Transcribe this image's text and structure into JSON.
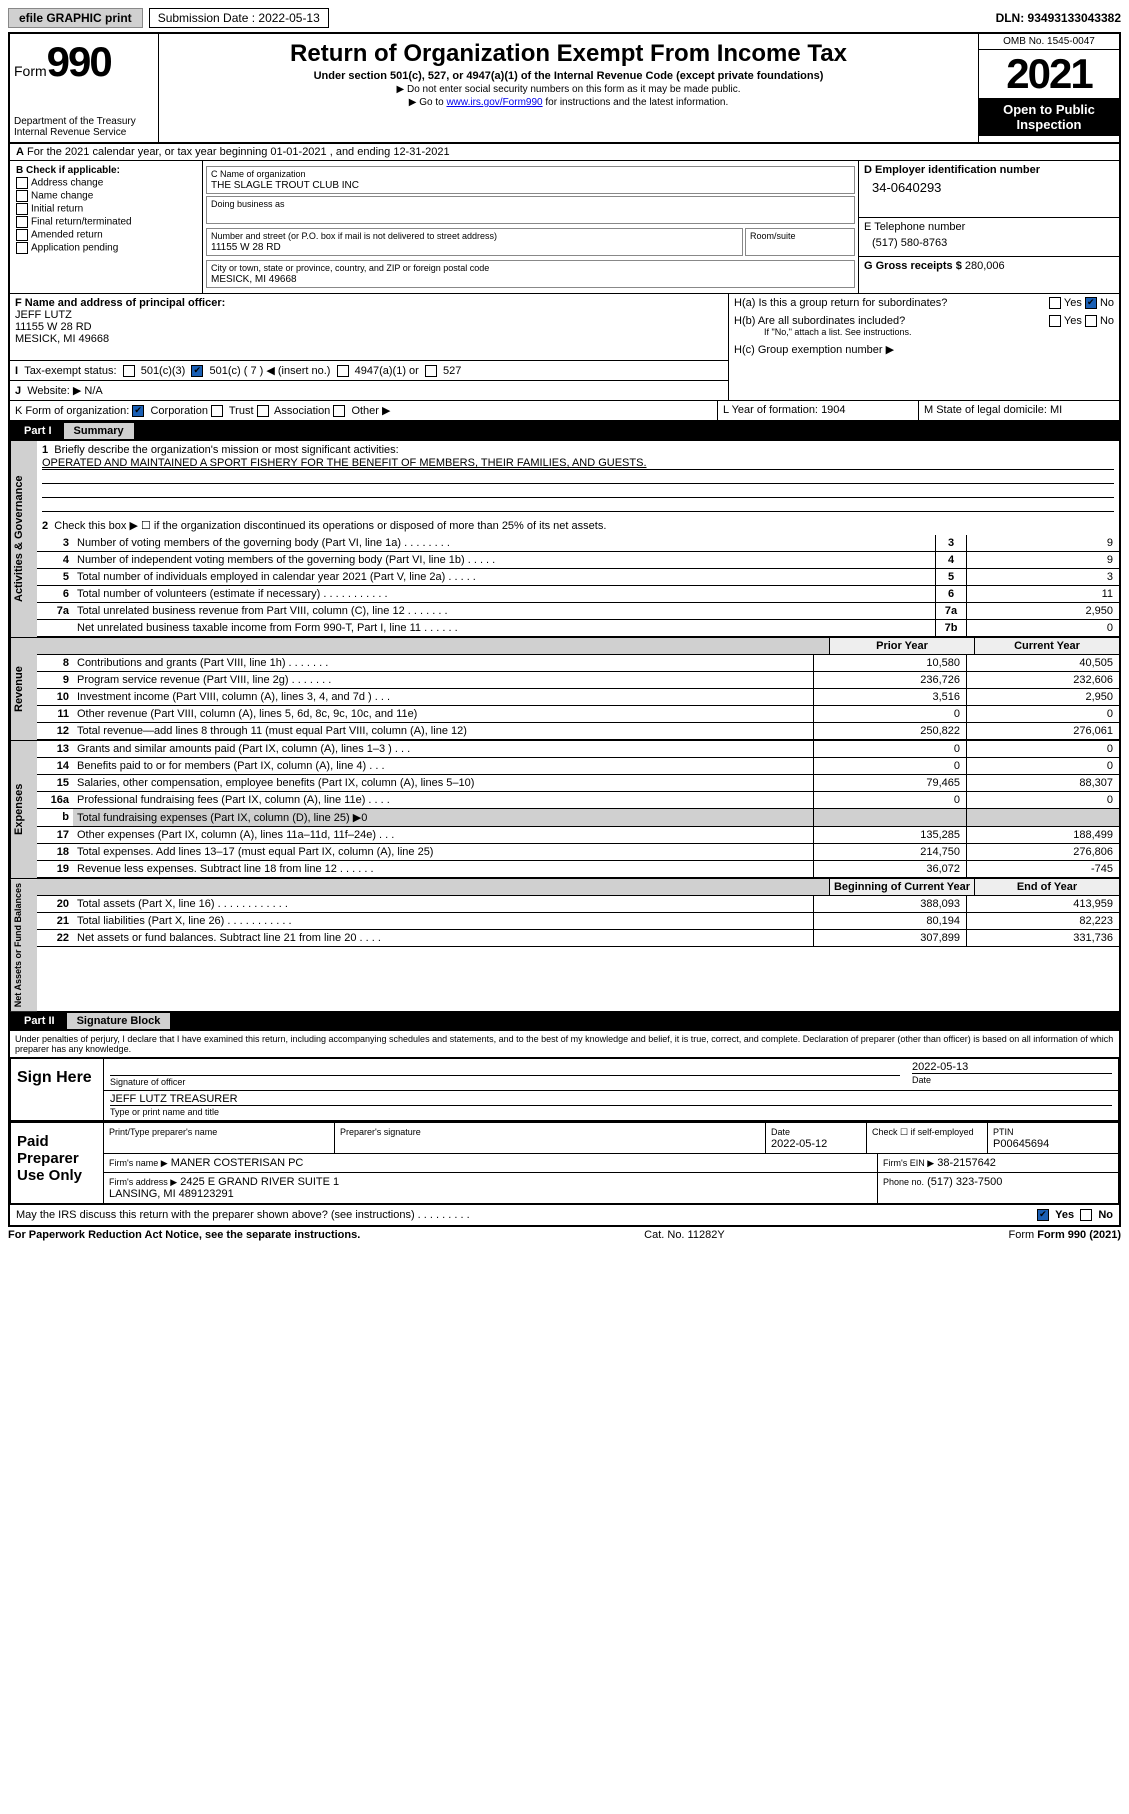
{
  "topbar": {
    "efile": "efile GRAPHIC print",
    "submission_label": "Submission Date : 2022-05-13",
    "dln": "DLN: 93493133043382"
  },
  "header": {
    "form_label": "Form",
    "form_number": "990",
    "dept": "Department of the Treasury\nInternal Revenue Service",
    "title": "Return of Organization Exempt From Income Tax",
    "subtitle": "Under section 501(c), 527, or 4947(a)(1) of the Internal Revenue Code (except private foundations)",
    "note1": "▶ Do not enter social security numbers on this form as it may be made public.",
    "note2_pre": "▶ Go to ",
    "note2_link": "www.irs.gov/Form990",
    "note2_post": " for instructions and the latest information.",
    "omb": "OMB No. 1545-0047",
    "year": "2021",
    "open": "Open to Public Inspection"
  },
  "sectionA": "For the 2021 calendar year, or tax year beginning 01-01-2021   , and ending 12-31-2021",
  "B": {
    "label": "B Check if applicable:",
    "items": [
      "Address change",
      "Name change",
      "Initial return",
      "Final return/terminated",
      "Amended return",
      "Application pending"
    ]
  },
  "C": {
    "name_label": "C Name of organization",
    "name": "THE SLAGLE TROUT CLUB INC",
    "dba_label": "Doing business as",
    "dba": "",
    "street_label": "Number and street (or P.O. box if mail is not delivered to street address)",
    "room_label": "Room/suite",
    "street": "11155 W 28 RD",
    "city_label": "City or town, state or province, country, and ZIP or foreign postal code",
    "city": "MESICK, MI  49668"
  },
  "D": {
    "label": "D Employer identification number",
    "value": "34-0640293"
  },
  "E": {
    "label": "E Telephone number",
    "value": "(517) 580-8763"
  },
  "G": {
    "label": "G Gross receipts $",
    "value": "280,006"
  },
  "F": {
    "label": "F Name and address of principal officer:",
    "name": "JEFF LUTZ",
    "street": "11155 W 28 RD",
    "city": "MESICK, MI  49668"
  },
  "H": {
    "a": "H(a)  Is this a group return for subordinates?",
    "a_yes": "Yes",
    "a_no": "No",
    "b": "H(b)  Are all subordinates included?",
    "b_note": "If \"No,\" attach a list. See instructions.",
    "c": "H(c)  Group exemption number ▶"
  },
  "I": {
    "label": "Tax-exempt status:",
    "c3": "501(c)(3)",
    "c": "501(c) ( 7 ) ◀ (insert no.)",
    "a1": "4947(a)(1) or",
    "527": "527"
  },
  "J": {
    "label": "Website: ▶",
    "value": "N/A"
  },
  "K": {
    "label": "K Form of organization:",
    "opts": [
      "Corporation",
      "Trust",
      "Association",
      "Other ▶"
    ]
  },
  "L": {
    "label": "L Year of formation:",
    "value": "1904"
  },
  "M": {
    "label": "M State of legal domicile:",
    "value": "MI"
  },
  "part1": {
    "title": "Part I",
    "sub": "Summary",
    "tabs": {
      "ag": "Activities & Governance",
      "rev": "Revenue",
      "exp": "Expenses",
      "na": "Net Assets or Fund Balances"
    },
    "line1": "Briefly describe the organization's mission or most significant activities:",
    "mission": "OPERATED AND MAINTAINED A SPORT FISHERY FOR THE BENEFIT OF MEMBERS, THEIR FAMILIES, AND GUESTS.",
    "line2": "Check this box ▶ ☐  if the organization discontinued its operations or disposed of more than 25% of its net assets.",
    "rows": [
      {
        "n": "3",
        "d": "Number of voting members of the governing body (Part VI, line 1a)   .   .   .   .   .   .   .   .",
        "b": "3",
        "v": "9"
      },
      {
        "n": "4",
        "d": "Number of independent voting members of the governing body (Part VI, line 1b)   .   .   .   .   .",
        "b": "4",
        "v": "9"
      },
      {
        "n": "5",
        "d": "Total number of individuals employed in calendar year 2021 (Part V, line 2a)   .   .   .   .   .",
        "b": "5",
        "v": "3"
      },
      {
        "n": "6",
        "d": "Total number of volunteers (estimate if necessary)   .   .   .   .   .   .   .   .   .   .   .",
        "b": "6",
        "v": "11"
      },
      {
        "n": "7a",
        "d": "Total unrelated business revenue from Part VIII, column (C), line 12   .   .   .   .   .   .   .",
        "b": "7a",
        "v": "2,950"
      },
      {
        "n": "",
        "d": "Net unrelated business taxable income from Form 990-T, Part I, line 11   .   .   .   .   .   .",
        "b": "7b",
        "v": "0"
      }
    ],
    "cols": {
      "prior": "Prior Year",
      "current": "Current Year",
      "begin": "Beginning of Current Year",
      "end": "End of Year"
    },
    "rev": [
      {
        "n": "8",
        "d": "Contributions and grants (Part VIII, line 1h)   .   .   .   .   .   .   .",
        "p": "10,580",
        "c": "40,505"
      },
      {
        "n": "9",
        "d": "Program service revenue (Part VIII, line 2g)   .   .   .   .   .   .   .",
        "p": "236,726",
        "c": "232,606"
      },
      {
        "n": "10",
        "d": "Investment income (Part VIII, column (A), lines 3, 4, and 7d )   .   .   .",
        "p": "3,516",
        "c": "2,950"
      },
      {
        "n": "11",
        "d": "Other revenue (Part VIII, column (A), lines 5, 6d, 8c, 9c, 10c, and 11e)",
        "p": "0",
        "c": "0"
      },
      {
        "n": "12",
        "d": "Total revenue—add lines 8 through 11 (must equal Part VIII, column (A), line 12)",
        "p": "250,822",
        "c": "276,061"
      }
    ],
    "exp": [
      {
        "n": "13",
        "d": "Grants and similar amounts paid (Part IX, column (A), lines 1–3 )   .   .   .",
        "p": "0",
        "c": "0"
      },
      {
        "n": "14",
        "d": "Benefits paid to or for members (Part IX, column (A), line 4)   .   .   .",
        "p": "0",
        "c": "0"
      },
      {
        "n": "15",
        "d": "Salaries, other compensation, employee benefits (Part IX, column (A), lines 5–10)",
        "p": "79,465",
        "c": "88,307"
      },
      {
        "n": "16a",
        "d": "Professional fundraising fees (Part IX, column (A), line 11e)   .   .   .   .",
        "p": "0",
        "c": "0"
      },
      {
        "n": "b",
        "d": "Total fundraising expenses (Part IX, column (D), line 25) ▶0",
        "p": "",
        "c": ""
      },
      {
        "n": "17",
        "d": "Other expenses (Part IX, column (A), lines 11a–11d, 11f–24e)   .   .   .",
        "p": "135,285",
        "c": "188,499"
      },
      {
        "n": "18",
        "d": "Total expenses. Add lines 13–17 (must equal Part IX, column (A), line 25)",
        "p": "214,750",
        "c": "276,806"
      },
      {
        "n": "19",
        "d": "Revenue less expenses. Subtract line 18 from line 12   .   .   .   .   .   .",
        "p": "36,072",
        "c": "-745"
      }
    ],
    "na": [
      {
        "n": "20",
        "d": "Total assets (Part X, line 16)   .   .   .   .   .   .   .   .   .   .   .   .",
        "p": "388,093",
        "c": "413,959"
      },
      {
        "n": "21",
        "d": "Total liabilities (Part X, line 26)   .   .   .   .   .   .   .   .   .   .   .",
        "p": "80,194",
        "c": "82,223"
      },
      {
        "n": "22",
        "d": "Net assets or fund balances. Subtract line 21 from line 20   .   .   .   .",
        "p": "307,899",
        "c": "331,736"
      }
    ]
  },
  "part2": {
    "title": "Part II",
    "sub": "Signature Block",
    "decl": "Under penalties of perjury, I declare that I have examined this return, including accompanying schedules and statements, and to the best of my knowledge and belief, it is true, correct, and complete. Declaration of preparer (other than officer) is based on all information of which preparer has any knowledge.",
    "sign_here": "Sign Here",
    "sig_officer": "Signature of officer",
    "date": "2022-05-13",
    "date_lbl": "Date",
    "officer": "JEFF LUTZ  TREASURER",
    "officer_lbl": "Type or print name and title",
    "paid": "Paid Preparer Use Only",
    "prep_name_lbl": "Print/Type preparer's name",
    "prep_sig_lbl": "Preparer's signature",
    "prep_date_lbl": "Date",
    "prep_date": "2022-05-12",
    "check_lbl": "Check ☐ if self-employed",
    "ptin_lbl": "PTIN",
    "ptin": "P00645694",
    "firm_name_lbl": "Firm's name   ▶",
    "firm_name": "MANER COSTERISAN PC",
    "firm_ein_lbl": "Firm's EIN ▶",
    "firm_ein": "38-2157642",
    "firm_addr_lbl": "Firm's address ▶",
    "firm_addr": "2425 E GRAND RIVER SUITE 1\nLANSING, MI  489123291",
    "phone_lbl": "Phone no.",
    "phone": "(517) 323-7500",
    "may": "May the IRS discuss this return with the preparer shown above? (see instructions)   .   .   .   .   .   .   .   .   .",
    "yes": "Yes",
    "no": "No"
  },
  "footer": {
    "left": "For Paperwork Reduction Act Notice, see the separate instructions.",
    "mid": "Cat. No. 11282Y",
    "right": "Form 990 (2021)"
  }
}
